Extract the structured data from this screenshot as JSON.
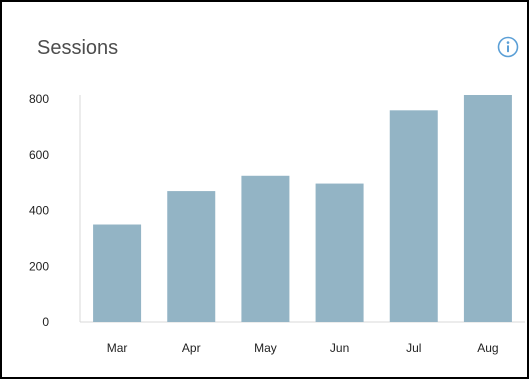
{
  "card": {
    "title": "Sessions"
  },
  "icons": {
    "info": "info-circle-icon"
  },
  "colors": {
    "bar": "#93b4c5",
    "axis": "#d9d9d9",
    "tick_text": "#222222",
    "info_icon": "#5b9fd6"
  },
  "chart_data": {
    "type": "bar",
    "title": "Sessions",
    "categories": [
      "Mar",
      "Apr",
      "May",
      "Jun",
      "Jul",
      "Aug"
    ],
    "values": [
      350,
      470,
      525,
      497,
      760,
      815
    ],
    "xlabel": "",
    "ylabel": "",
    "ylim": [
      0,
      815
    ],
    "yticks": [
      0,
      200,
      400,
      600,
      800
    ],
    "grid": false,
    "legend": "none"
  }
}
